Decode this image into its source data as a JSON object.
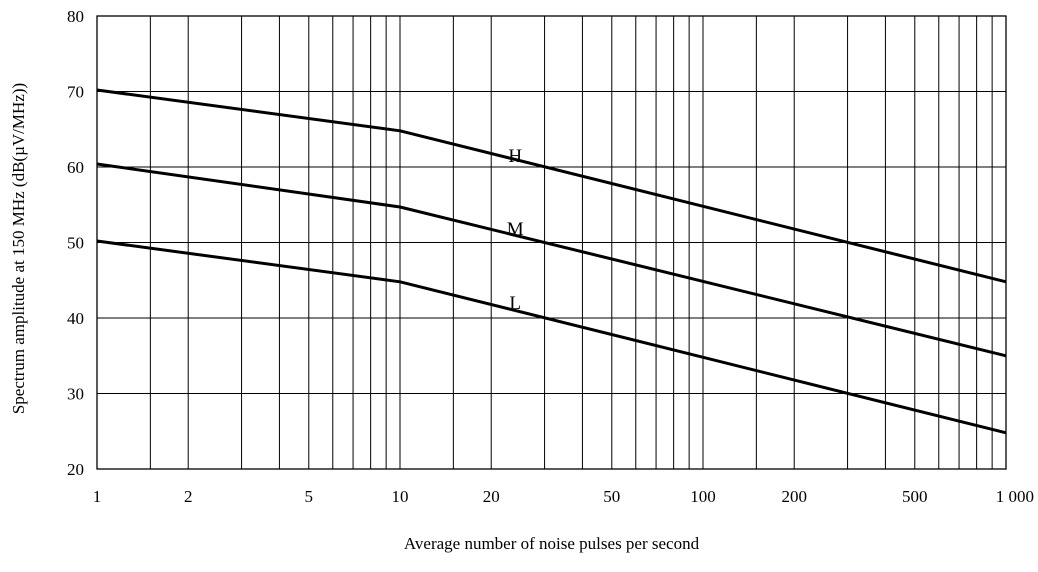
{
  "chart_data": {
    "type": "line",
    "title": "",
    "xlabel": "Average number of noise pulses per second",
    "ylabel": "Spectrum amplitude at 150 MHz (dB(µV/MHz))",
    "x_scale": "log",
    "xlim": [
      1,
      1000
    ],
    "ylim": [
      20,
      80
    ],
    "grid": true,
    "x_minor_grid": [
      1.5,
      3,
      4,
      6,
      7,
      8,
      9,
      15,
      30,
      40,
      60,
      70,
      80,
      90,
      150,
      300,
      400,
      600,
      700,
      800,
      900
    ],
    "x_ticks": [
      {
        "value": 1,
        "label": "1"
      },
      {
        "value": 2,
        "label": "2"
      },
      {
        "value": 5,
        "label": "5"
      },
      {
        "value": 10,
        "label": "10"
      },
      {
        "value": 20,
        "label": "20"
      },
      {
        "value": 50,
        "label": "50"
      },
      {
        "value": 100,
        "label": "100"
      },
      {
        "value": 200,
        "label": "200"
      },
      {
        "value": 500,
        "label": "500"
      },
      {
        "value": 1000,
        "label": "1 000"
      }
    ],
    "y_ticks": [
      {
        "value": 20,
        "label": "20"
      },
      {
        "value": 30,
        "label": "30"
      },
      {
        "value": 40,
        "label": "40"
      },
      {
        "value": 50,
        "label": "50"
      },
      {
        "value": 60,
        "label": "60"
      },
      {
        "value": 70,
        "label": "70"
      },
      {
        "value": 80,
        "label": "80"
      }
    ],
    "series": [
      {
        "name": "H",
        "x": [
          1,
          10,
          1000
        ],
        "y": [
          70.2,
          64.8,
          44.8
        ],
        "label_at": [
          24,
          61.6
        ]
      },
      {
        "name": "M",
        "x": [
          1,
          10,
          1000
        ],
        "y": [
          60.4,
          54.7,
          35
        ],
        "label_at": [
          24,
          51.9
        ]
      },
      {
        "name": "L",
        "x": [
          1,
          10,
          1000
        ],
        "y": [
          50.2,
          44.8,
          24.8
        ],
        "label_at": [
          24,
          42.1
        ]
      }
    ]
  }
}
